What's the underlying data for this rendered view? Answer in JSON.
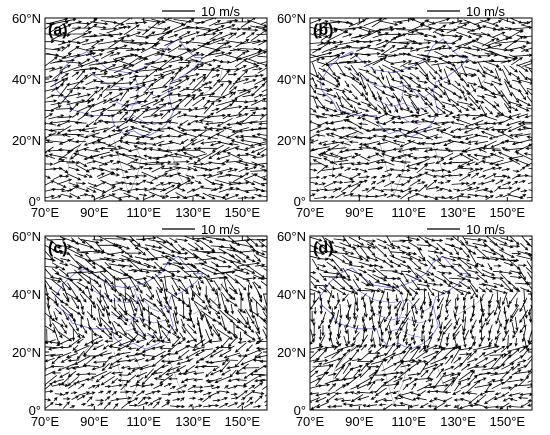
{
  "chart_data": [
    {
      "type": "vector-field",
      "panel_label": "(a)",
      "scale_label": "10 m/s",
      "scale_speed": 10,
      "xlim": [
        70,
        160
      ],
      "ylim": [
        0,
        60
      ],
      "x_ticks": [
        {
          "value": 70,
          "label": "70°E"
        },
        {
          "value": 90,
          "label": "90°E"
        },
        {
          "value": 110,
          "label": "110°E"
        },
        {
          "value": 130,
          "label": "130°E"
        },
        {
          "value": 150,
          "label": "150°E"
        }
      ],
      "y_ticks": [
        {
          "value": 0,
          "label": "0°"
        },
        {
          "value": 20,
          "label": "20°N"
        },
        {
          "value": 40,
          "label": "40°N"
        },
        {
          "value": 60,
          "label": "60°N"
        }
      ],
      "wind_regimes": [
        {
          "lat_min": 42,
          "lat_max": 60,
          "direction_deg": 10,
          "speed": 12
        },
        {
          "lat_min": 26,
          "lat_max": 42,
          "direction_deg": 25,
          "speed": 10
        },
        {
          "lat_min": 14,
          "lat_max": 26,
          "direction_deg": 185,
          "speed": 11
        },
        {
          "lat_min": 0,
          "lat_max": 14,
          "direction_deg": 0,
          "speed": 9
        }
      ]
    },
    {
      "type": "vector-field",
      "panel_label": "(b)",
      "scale_label": "10 m/s",
      "scale_speed": 10,
      "xlim": [
        70,
        160
      ],
      "ylim": [
        0,
        60
      ],
      "x_ticks": [
        {
          "value": 70,
          "label": "70°E"
        },
        {
          "value": 90,
          "label": "90°E"
        },
        {
          "value": 110,
          "label": "110°E"
        },
        {
          "value": 130,
          "label": "130°E"
        },
        {
          "value": 150,
          "label": "150°E"
        }
      ],
      "y_ticks": [
        {
          "value": 0,
          "label": "0°"
        },
        {
          "value": 20,
          "label": "20°N"
        },
        {
          "value": 40,
          "label": "40°N"
        },
        {
          "value": 60,
          "label": "60°N"
        }
      ],
      "wind_regimes": [
        {
          "lat_min": 45,
          "lat_max": 60,
          "direction_deg": 5,
          "speed": 12
        },
        {
          "lat_min": 28,
          "lat_max": 45,
          "direction_deg": 320,
          "speed": 9
        },
        {
          "lat_min": 12,
          "lat_max": 28,
          "direction_deg": 180,
          "speed": 10
        },
        {
          "lat_min": 0,
          "lat_max": 12,
          "direction_deg": 10,
          "speed": 7
        }
      ]
    },
    {
      "type": "vector-field",
      "panel_label": "(c)",
      "scale_label": "10 m/s",
      "scale_speed": 10,
      "xlim": [
        70,
        160
      ],
      "ylim": [
        0,
        60
      ],
      "x_ticks": [
        {
          "value": 70,
          "label": "70°E"
        },
        {
          "value": 90,
          "label": "90°E"
        },
        {
          "value": 110,
          "label": "110°E"
        },
        {
          "value": 130,
          "label": "130°E"
        },
        {
          "value": 150,
          "label": "150°E"
        }
      ],
      "y_ticks": [
        {
          "value": 0,
          "label": "0°"
        },
        {
          "value": 20,
          "label": "20°N"
        },
        {
          "value": 40,
          "label": "40°N"
        },
        {
          "value": 60,
          "label": "60°N"
        }
      ],
      "wind_regimes": [
        {
          "lat_min": 45,
          "lat_max": 60,
          "direction_deg": 340,
          "speed": 11
        },
        {
          "lat_min": 25,
          "lat_max": 45,
          "direction_deg": 300,
          "speed": 10
        },
        {
          "lat_min": 10,
          "lat_max": 25,
          "direction_deg": 200,
          "speed": 9
        },
        {
          "lat_min": 0,
          "lat_max": 10,
          "direction_deg": 20,
          "speed": 6
        }
      ]
    },
    {
      "type": "vector-field",
      "panel_label": "(d)",
      "scale_label": "10 m/s",
      "scale_speed": 10,
      "xlim": [
        70,
        160
      ],
      "ylim": [
        0,
        60
      ],
      "x_ticks": [
        {
          "value": 70,
          "label": "70°E"
        },
        {
          "value": 90,
          "label": "90°E"
        },
        {
          "value": 110,
          "label": "110°E"
        },
        {
          "value": 130,
          "label": "130°E"
        },
        {
          "value": 150,
          "label": "150°E"
        }
      ],
      "y_ticks": [
        {
          "value": 0,
          "label": "0°"
        },
        {
          "value": 20,
          "label": "20°N"
        },
        {
          "value": 40,
          "label": "40°N"
        },
        {
          "value": 60,
          "label": "60°N"
        }
      ],
      "wind_regimes": [
        {
          "lat_min": 40,
          "lat_max": 60,
          "direction_deg": 330,
          "speed": 9
        },
        {
          "lat_min": 22,
          "lat_max": 40,
          "direction_deg": 260,
          "speed": 8
        },
        {
          "lat_min": 8,
          "lat_max": 22,
          "direction_deg": 30,
          "speed": 10
        },
        {
          "lat_min": 0,
          "lat_max": 8,
          "direction_deg": 190,
          "speed": 7
        }
      ]
    }
  ],
  "colors": {
    "vector": "#000000",
    "border": "#6f6fe8",
    "coast": "#9a9a9a",
    "frame": "#000000"
  }
}
